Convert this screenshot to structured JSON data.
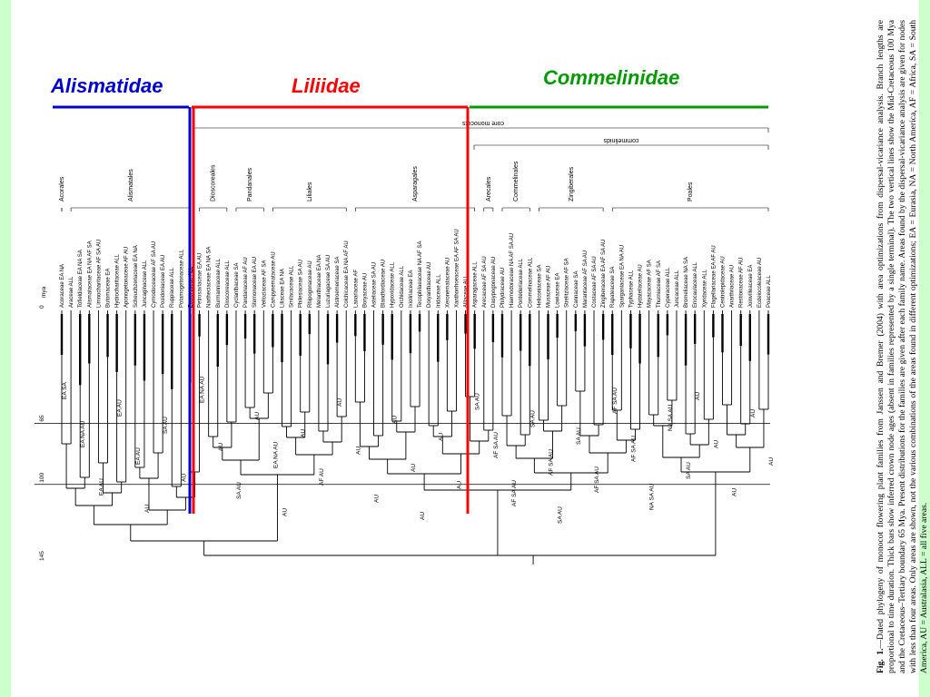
{
  "clades": {
    "alismatidae": {
      "label": "Alismatidae",
      "color": "#0000cc"
    },
    "liliidae": {
      "label": "Liliidae",
      "color": "#ff0000"
    },
    "commelinidae": {
      "label": "Commelinidae",
      "color": "#009900"
    }
  },
  "brackets": {
    "core_monocots": "core monocots",
    "commelinids": "commelinids"
  },
  "orders": [
    "Acorales",
    "Alismatales",
    "Dioscoreales",
    "Pandanales",
    "Liliales",
    "Asparagales",
    "Arecales",
    "Commelinales",
    "Zingiberales",
    "Poales"
  ],
  "time_axis": {
    "unit": "mya",
    "ticks": [
      "0",
      "65",
      "100",
      "145"
    ]
  },
  "families": [
    "Acoraceae EA NA",
    "Araceae ALL",
    "Tofieldiaceae EA NA SA",
    "Alismataceae EA NA AF SA",
    "Limnocharitaceae AF SA AU",
    "Butomaceae EA",
    "Hydrocharitaceae ALL",
    "Aponogetonaceae AF AU",
    "Scheuchzeriaceae EA NA",
    "Juncaginaceae ALL",
    "Cymodoceaceae AF SA AU",
    "Posidoniaceae EA AU",
    "Ruppiaceae ALL",
    "Potamogetonaceae ALL",
    "Zosteraceae ALL",
    "Petrosaviaceae EA AU",
    "Nartheciaceae EA NA SA",
    "Burmanniaceae ALL",
    "Dioscoreaceae ALL",
    "Cyclanthaceae SA",
    "Pandanaceae AF AU",
    "Stemonaceae EA AU",
    "Velloziaceae AF SA",
    "Campynemataceae AU",
    "Liliaceae EA NA",
    "Smilacaceae ALL",
    "Philesiaceae SA AU",
    "Rhipogonaceae AU",
    "Melanthiaceae EA NA",
    "Luzuriagaceae SA AU",
    "Alstroemeriaceae SA",
    "Colchicaceae EA NA AF AU",
    "Lanariaceae AF",
    "Boryaceae AU",
    "Asteliaceae SA AU",
    "Blandfordiaceae AU",
    "Hypoxidaceae ALL",
    "Orchidaceae ALL",
    "Ixioliriaceae EA",
    "Tecophilaeaceae NA AF SA",
    "Doryanthaceae AU",
    "Iridaceae ALL",
    "Xeronemataceae AU",
    "Xanthorrhoeaceae EA AF SA AU",
    "Alliaceae ALL",
    "Asparagaceae ALL",
    "Arecaceae AF SA AU",
    "Dasypogonaceae AU",
    "Philydraceae AU",
    "Haemodoraceae NA AF SA AU",
    "Pontederiaceae ALL",
    "Commelinaceae ALL",
    "Heliconiaceae SA",
    "Musaceae AF AU",
    "Lowiaceae EA",
    "Strelitziaceae AF SA",
    "Cannaceae SA",
    "Marantaceae AF SA AU",
    "Costaceae AF SA AU",
    "Zingiberaceae EA AF SA AU",
    "Rapateaceae SA",
    "Sparganiaceae EA NA AU",
    "Typhaceae ALL",
    "Hydatellaceae AU",
    "Mayacaceae AF SA",
    "Thurniaceae AF SA",
    "Cyperaceae ALL",
    "Juncaceae ALL",
    "Bromeliaceae NA SA",
    "Eriocaulaceae ALL",
    "Xyridaceae ALL",
    "Flagellariaceae EA AF AU",
    "Centrolepidaceae AU",
    "Anarthriaceae AU",
    "Restionaceae AF AU",
    "Joinvilleaceae EA",
    "Ecdeiocoleaceae AU",
    "Poaceae ALL"
  ],
  "node_labels": [
    "EA SA",
    "EA NA AU",
    "EA AU",
    "EA AU",
    "EA AU",
    "AU",
    "SA AU",
    "AU",
    "EA NA AU",
    "AU",
    "SA AU",
    "AU",
    "EA NA AU",
    "AU",
    "AU",
    "AF AU",
    "AU",
    "AU",
    "AU",
    "AU",
    "AU",
    "AU",
    "AU",
    "AU",
    "SA AU",
    "AF SA AU",
    "AF SA AU",
    "SA AU",
    "AF SA AU",
    "SA AU",
    "SA AU",
    "AF SA AU",
    "AF SA AU",
    "AF SA AU",
    "NA SA AU",
    "NA SA AU",
    "SA AU",
    "AU",
    "AU",
    "AU",
    "AU",
    "AU"
  ],
  "caption": {
    "fig": "Fig. 1.",
    "text": "—Dated phylogeny of monocot flowering plant families from Janssen and Bremer (2004) with area optimizations from dispersal-vicariance analysis. Branch lengths are proportional to time duration. Thick bars show inferred crown node ages (absent in families represented by a single terminal). The two vertical lines show the Mid-Cretaceous 100 Mya and the Cretaceous–Tertiary boundary 65 Mya. Present distributions for the families are given after each family name. Areas found by the dispersal-vicariance analysis are given for nodes with less than four areas. Only areas are shown, not the various combinations of the areas found in different optimizations; EA = Eurasia, NA = North America, AF = Africa, SA = South America, AU = Australasia, ALL = all five areas."
  }
}
